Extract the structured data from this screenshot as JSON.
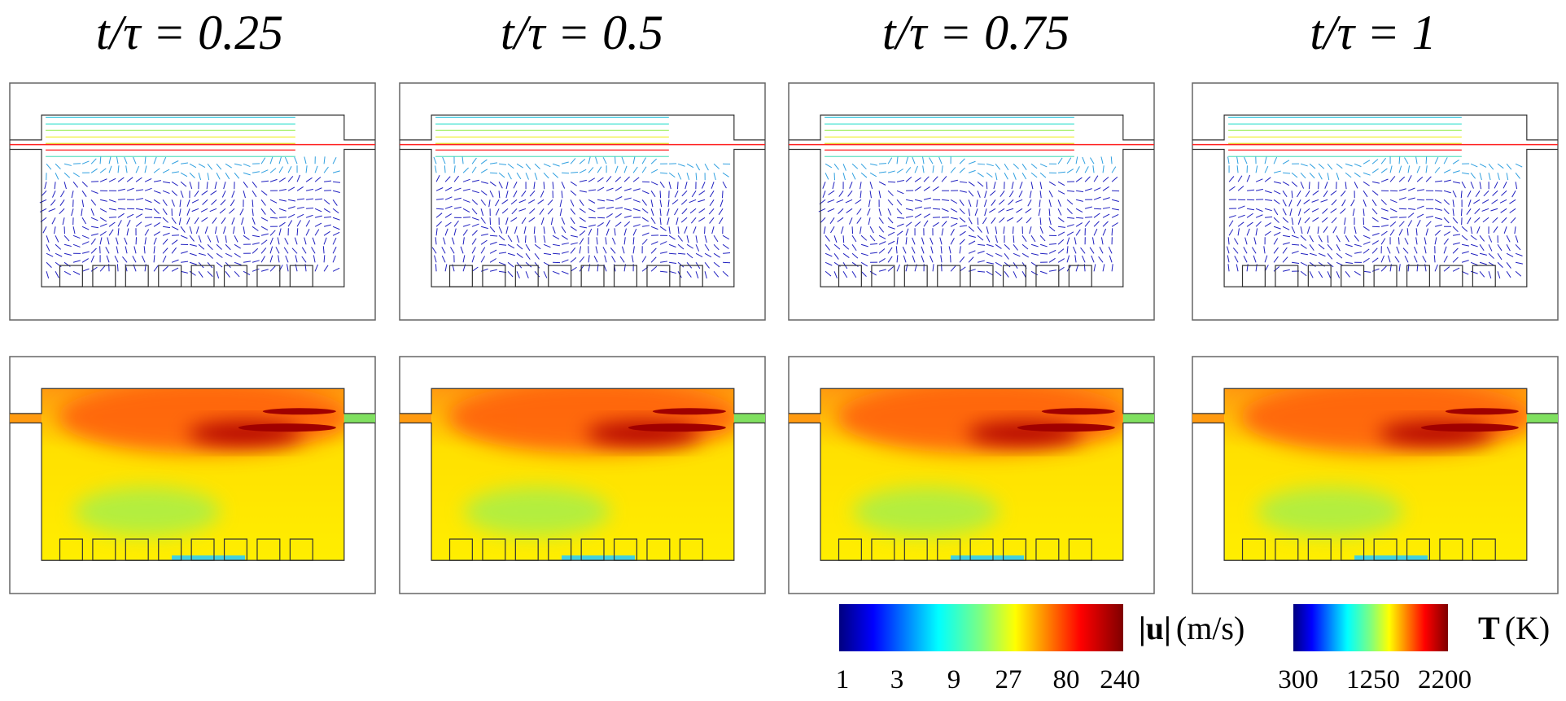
{
  "titles": [
    "t/τ = 0.25",
    "t/τ = 0.5",
    "t/τ = 0.75",
    "t/τ = 1"
  ],
  "colorbars": {
    "velocity": {
      "symbol": "|u|",
      "unit": "(m/s)",
      "ticks": [
        1,
        3,
        9,
        27,
        80,
        240
      ]
    },
    "temperature": {
      "symbol": "T",
      "unit": "(K)",
      "ticks": [
        300,
        1250,
        2200
      ]
    }
  }
}
